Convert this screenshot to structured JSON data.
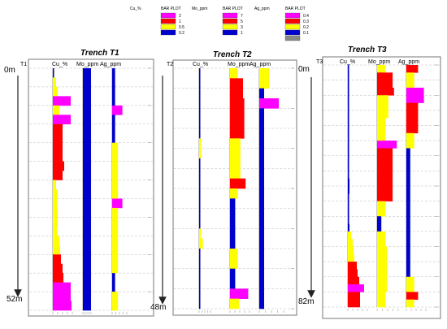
{
  "legends": [
    {
      "title": "Cu_%",
      "plot_label": "BAR PLOT",
      "entries": [
        {
          "label": "2",
          "color": "#ff00ff"
        },
        {
          "label": "1",
          "color": "#ff0000"
        },
        {
          "label": "0.5",
          "color": "#ffff00"
        },
        {
          "label": "0.2",
          "color": "#0000cc"
        }
      ]
    },
    {
      "title": "Mo_ppm",
      "plot_label": "BAR PLOT",
      "entries": [
        {
          "label": "7",
          "color": "#ff00ff"
        },
        {
          "label": "5",
          "color": "#ff0000"
        },
        {
          "label": "3",
          "color": "#ffff00"
        },
        {
          "label": "1",
          "color": "#0000cc"
        }
      ]
    },
    {
      "title": "Ag_ppm",
      "plot_label": "BAR PLOT",
      "entries": [
        {
          "label": "0.4",
          "color": "#ff00ff"
        },
        {
          "label": "0.3",
          "color": "#ff0000"
        },
        {
          "label": "0.2",
          "color": "#ffff00"
        },
        {
          "label": "0.1",
          "color": "#0000cc"
        },
        {
          "label": "",
          "color": "#888888"
        }
      ]
    }
  ],
  "chart_data": [
    {
      "type": "bar",
      "title": "Trench T1",
      "tag": "T1",
      "top_label": "0m",
      "bottom_label": "52m",
      "columns": [
        "Cu_%",
        "Mo_ppm",
        "Ag_ppm"
      ],
      "samples": 26,
      "series": [
        {
          "name": "Cu_%",
          "values": [
            0.15,
            0.4,
            0.6,
            2.2,
            0.8,
            2.2,
            1.2,
            1.2,
            1.2,
            1.2,
            1.4,
            1.2,
            0.4,
            0.6,
            0.5,
            0.6,
            0.6,
            0.5,
            0.8,
            0.9,
            1.0,
            1.2,
            1.3,
            2.2,
            2.2,
            2.3
          ]
        },
        {
          "name": "Mo_ppm",
          "values": [
            0.5,
            0.5,
            0.5,
            0.5,
            0.5,
            0.5,
            0.5,
            0.5,
            0.5,
            0.5,
            0.5,
            0.5,
            0.5,
            0.5,
            0.5,
            0.5,
            0.5,
            0.5,
            0.5,
            0.5,
            0.5,
            0.5,
            0.5,
            0.5,
            0.5,
            0.5
          ]
        },
        {
          "name": "Ag_ppm",
          "values": [
            0.1,
            0.1,
            0.1,
            0.1,
            0.35,
            0.1,
            0.1,
            0.1,
            0.2,
            0.2,
            0.2,
            0.2,
            0.2,
            0.2,
            0.35,
            0.2,
            0.2,
            0.2,
            0.2,
            0.2,
            0.2,
            0.2,
            0.1,
            0.1,
            0.2,
            0.2
          ]
        }
      ]
    },
    {
      "type": "bar",
      "title": "Trench T2",
      "tag": "T2",
      "top_label": "",
      "bottom_label": "48m",
      "columns": [
        "Cu_%",
        "Mo_ppm",
        "Ag_ppm"
      ],
      "samples": 24,
      "series": [
        {
          "name": "Cu_%",
          "values": [
            0.05,
            0.05,
            0.05,
            0.05,
            0.05,
            0.05,
            0.05,
            0.4,
            0.4,
            0.05,
            0.05,
            0.05,
            0.05,
            0.05,
            0.05,
            0.05,
            0.4,
            0.8,
            0.05,
            0.05,
            0.05,
            0.05,
            0.05,
            0.05
          ]
        },
        {
          "name": "Mo_ppm",
          "values": [
            3,
            5,
            5,
            5.5,
            5.5,
            5.5,
            5.5,
            4,
            4,
            4,
            4,
            6,
            3,
            2,
            2,
            2,
            2,
            2,
            3,
            3,
            2,
            2,
            7,
            3.5
          ]
        },
        {
          "name": "Ag_ppm",
          "values": [
            0.2,
            0.2,
            0.1,
            0.4,
            0.1,
            0.1,
            0.1,
            0.1,
            0.1,
            0.1,
            0.1,
            0.1,
            0.1,
            0.1,
            0.1,
            0.1,
            0.1,
            0.1,
            0.1,
            0.1,
            0.1,
            0.1,
            0.1,
            0.1
          ]
        }
      ]
    },
    {
      "type": "bar",
      "title": "Trench T3",
      "tag": "T3",
      "top_label": "0m",
      "bottom_label": "82m",
      "columns": [
        "Cu_%",
        "Mo_ppm",
        "Ag_ppm"
      ],
      "samples": 32,
      "series": [
        {
          "name": "Cu_%",
          "values": [
            0.05,
            0.05,
            0.05,
            0.05,
            0.05,
            0.05,
            0.05,
            0.05,
            0.05,
            0.05,
            0.05,
            0.1,
            0.1,
            0.1,
            0.15,
            0.2,
            0.2,
            0.1,
            0.1,
            0.1,
            0.1,
            0.2,
            0.4,
            0.6,
            0.7,
            0.8,
            1.1,
            1.2,
            1.4,
            2.0,
            1.5,
            1.5
          ]
        },
        {
          "name": "Mo_ppm",
          "values": [
            3,
            5.5,
            5.5,
            6,
            4,
            4,
            4,
            3,
            3,
            3,
            7,
            5.5,
            5.5,
            5.5,
            5.5,
            5.5,
            5.5,
            5.5,
            3,
            3,
            1.5,
            1.5,
            3,
            3,
            3.5,
            3.5,
            3.5,
            3.5,
            3.5,
            3.5,
            3,
            3
          ]
        },
        {
          "name": "Ag_ppm",
          "values": [
            0.3,
            0.2,
            0.2,
            0.45,
            0.45,
            0.3,
            0.3,
            0.3,
            0.3,
            0.2,
            0.2,
            0.1,
            0.1,
            0.1,
            0.1,
            0.1,
            0.1,
            0.1,
            0.1,
            0.1,
            0.1,
            0.1,
            0.1,
            0.1,
            0.1,
            0.1,
            0.1,
            0.1,
            0.2,
            0.2,
            0.3,
            0.2
          ]
        }
      ]
    }
  ]
}
